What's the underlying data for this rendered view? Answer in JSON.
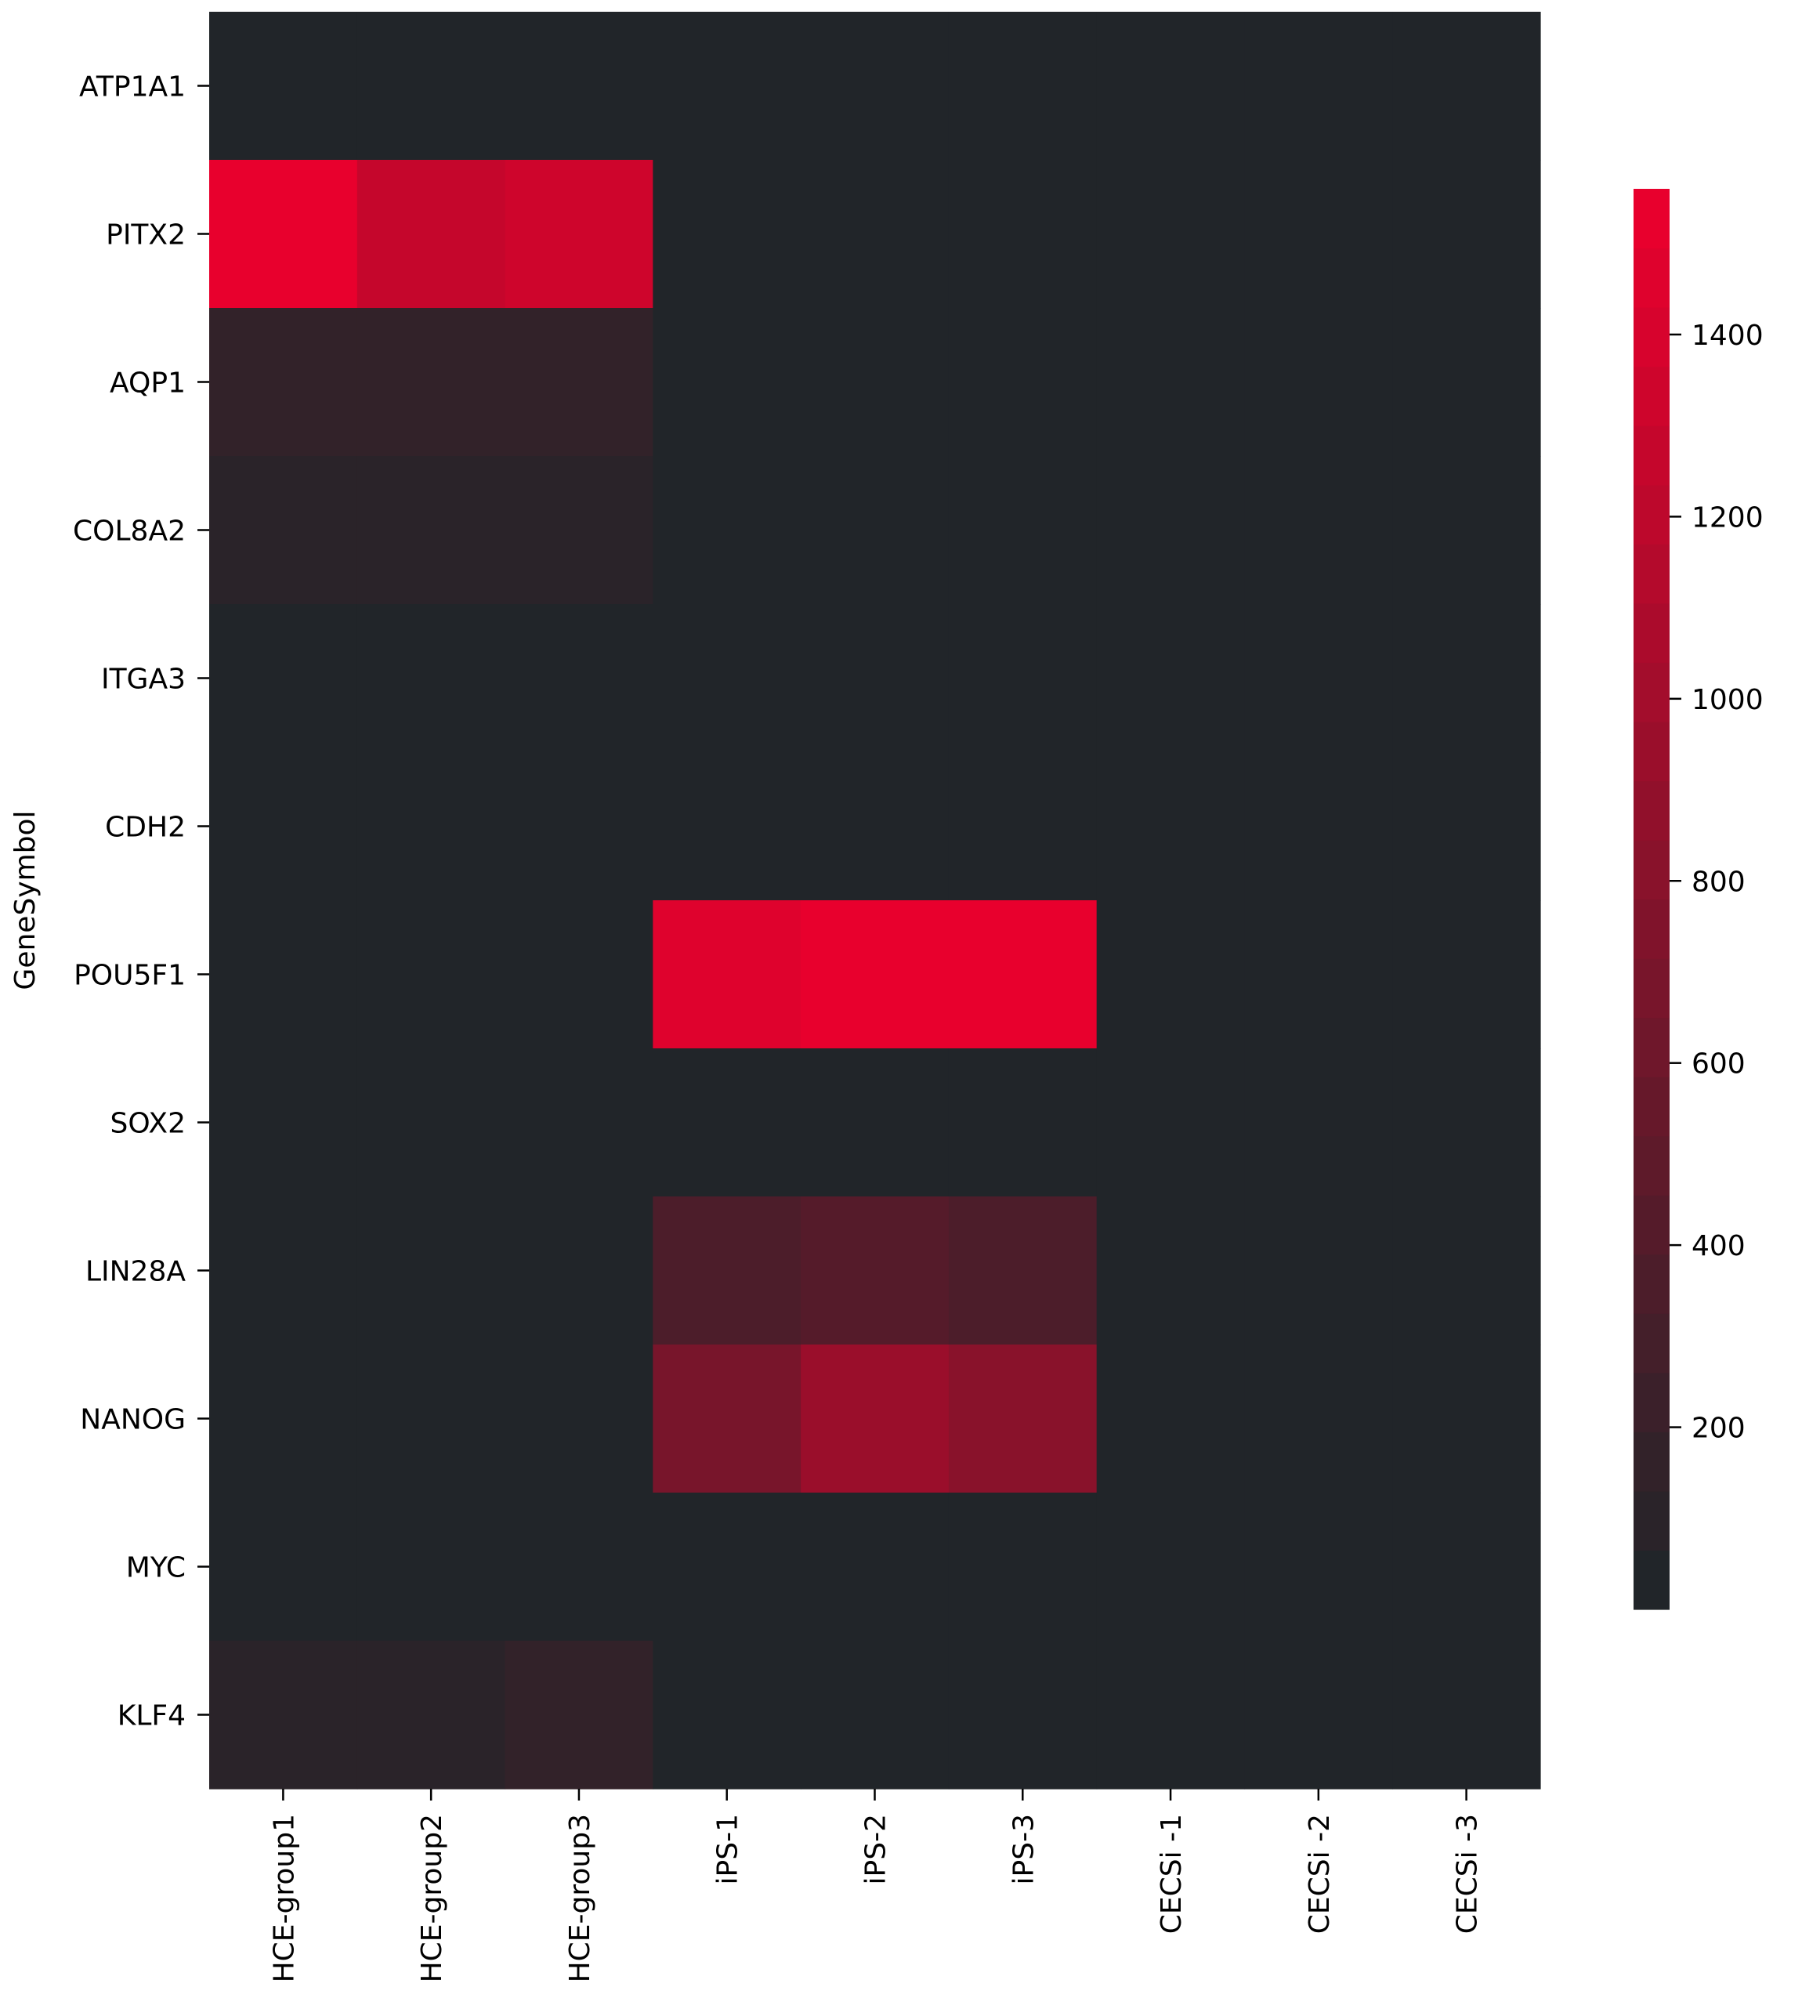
{
  "chart_data": {
    "type": "heatmap",
    "title": "",
    "xlabel": "",
    "ylabel": "GeneSymbol",
    "columns": [
      "HCE-group1",
      "HCE-group2",
      "HCE-group3",
      "iPS-1",
      "iPS-2",
      "iPS-3",
      "CECSi -1",
      "CECSi -2",
      "CECSi -3"
    ],
    "rows": [
      "ATP1A1",
      "PITX2",
      "AQP1",
      "COL8A2",
      "ITGA3",
      "CDH2",
      "POU5F1",
      "SOX2",
      "LIN28A",
      "NANOG",
      "MYC",
      "KLF4"
    ],
    "values": [
      [
        10,
        10,
        10,
        5,
        5,
        5,
        5,
        5,
        5
      ],
      [
        1560,
        1240,
        1340,
        5,
        5,
        5,
        5,
        5,
        5
      ],
      [
        170,
        130,
        130,
        5,
        5,
        5,
        5,
        5,
        5
      ],
      [
        100,
        100,
        110,
        5,
        5,
        5,
        5,
        5,
        5
      ],
      [
        5,
        5,
        5,
        5,
        5,
        5,
        5,
        5,
        5
      ],
      [
        5,
        5,
        5,
        5,
        5,
        5,
        5,
        5,
        5
      ],
      [
        5,
        5,
        5,
        1460,
        1560,
        1560,
        5,
        5,
        5
      ],
      [
        5,
        5,
        5,
        5,
        5,
        5,
        5,
        5,
        5
      ],
      [
        5,
        5,
        5,
        330,
        430,
        350,
        5,
        5,
        5
      ],
      [
        5,
        5,
        5,
        650,
        940,
        820,
        5,
        5,
        5
      ],
      [
        5,
        5,
        5,
        5,
        5,
        5,
        5,
        5,
        5
      ],
      [
        120,
        120,
        130,
        5,
        5,
        5,
        5,
        5,
        5
      ]
    ],
    "colorbar": {
      "min": 0,
      "max": 1560,
      "ticks": [
        200,
        400,
        600,
        800,
        1000,
        1200,
        1400
      ],
      "tick_labels": [
        "200",
        "400",
        "600",
        "800",
        "1000",
        "1200",
        "1400"
      ],
      "low_color": "#212529",
      "high_color": "#e8002d",
      "levels": 24,
      "placement": "right"
    },
    "grid": false,
    "legend": "none"
  }
}
